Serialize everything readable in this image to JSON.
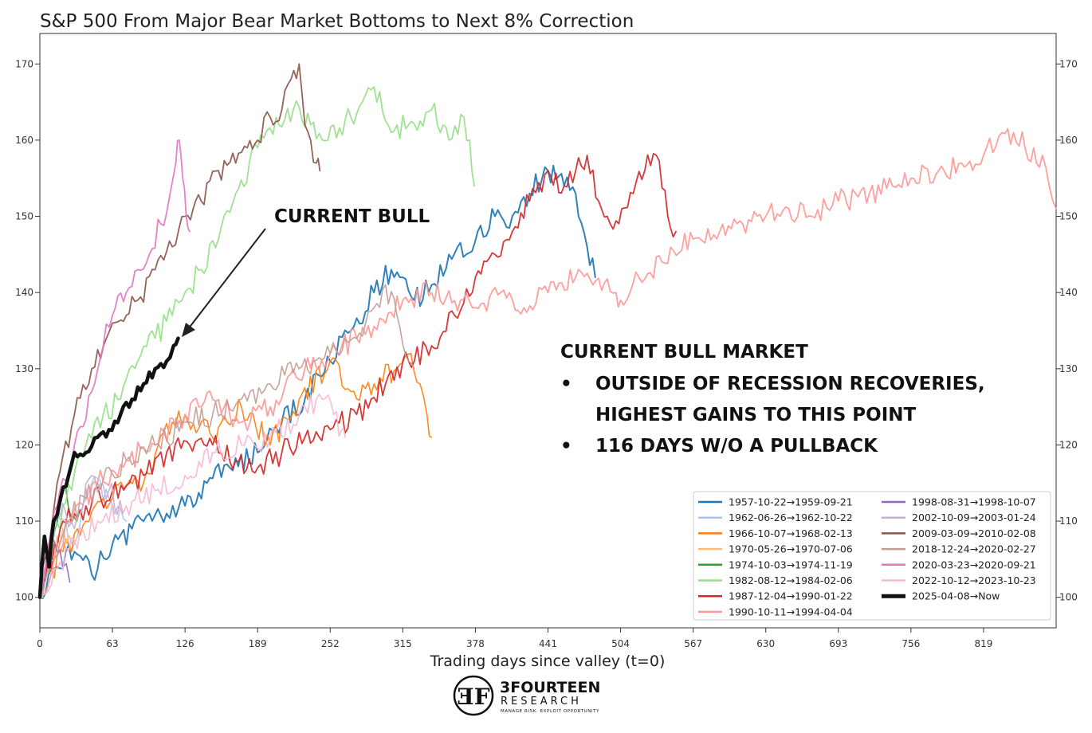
{
  "chart_data": {
    "type": "line",
    "title": "S&P 500 From Major Bear Market Bottoms to Next 8% Correction",
    "xlabel": "Trading days since valley (t=0)",
    "ylabel": "",
    "xlim": [
      0,
      882
    ],
    "ylim": [
      96,
      174
    ],
    "xticks": [
      0,
      63,
      126,
      189,
      252,
      315,
      378,
      441,
      504,
      567,
      630,
      693,
      756,
      819
    ],
    "yticks": [
      100,
      110,
      120,
      130,
      140,
      150,
      160,
      170
    ],
    "grid": false,
    "legend_position": "bottom-right",
    "series": [
      {
        "name": "1957-10-22→1959-09-21",
        "color": "#1f77b4",
        "width": 2,
        "points": [
          [
            0,
            100
          ],
          [
            15,
            104
          ],
          [
            30,
            106
          ],
          [
            45,
            103
          ],
          [
            63,
            107
          ],
          [
            80,
            109
          ],
          [
            95,
            111
          ],
          [
            110,
            111
          ],
          [
            126,
            112
          ],
          [
            145,
            115
          ],
          [
            165,
            117
          ],
          [
            189,
            119
          ],
          [
            210,
            123
          ],
          [
            230,
            126
          ],
          [
            252,
            131
          ],
          [
            270,
            135
          ],
          [
            290,
            140
          ],
          [
            305,
            143
          ],
          [
            315,
            142
          ],
          [
            325,
            139
          ],
          [
            340,
            141
          ],
          [
            355,
            145
          ],
          [
            370,
            145
          ],
          [
            380,
            148
          ],
          [
            395,
            150
          ],
          [
            410,
            150
          ],
          [
            425,
            153
          ],
          [
            441,
            156
          ],
          [
            455,
            154
          ],
          [
            465,
            153
          ],
          [
            475,
            146
          ],
          [
            482,
            142
          ]
        ]
      },
      {
        "name": "1962-06-26→1962-10-22",
        "color": "#aec7e8",
        "width": 1.6,
        "points": [
          [
            0,
            100
          ],
          [
            15,
            111
          ],
          [
            30,
            107
          ],
          [
            45,
            115
          ],
          [
            60,
            113
          ],
          [
            75,
            110
          ]
        ]
      },
      {
        "name": "1966-10-07→1968-02-13",
        "color": "#ff7f0e",
        "width": 1.6,
        "points": [
          [
            0,
            100
          ],
          [
            20,
            106
          ],
          [
            40,
            110
          ],
          [
            63,
            113
          ],
          [
            90,
            115
          ],
          [
            115,
            123
          ],
          [
            126,
            124
          ],
          [
            150,
            121
          ],
          [
            175,
            125
          ],
          [
            200,
            120
          ],
          [
            225,
            126
          ],
          [
            252,
            131
          ],
          [
            270,
            127
          ],
          [
            290,
            128
          ],
          [
            310,
            130
          ],
          [
            322,
            132
          ],
          [
            330,
            128
          ],
          [
            336,
            124
          ],
          [
            340,
            121
          ]
        ]
      },
      {
        "name": "1970-05-26→1970-07-06",
        "color": "#ffbb78",
        "width": 1.6,
        "points": [
          [
            0,
            100
          ],
          [
            10,
            105
          ],
          [
            20,
            109
          ],
          [
            28,
            107
          ]
        ]
      },
      {
        "name": "1974-10-03→1974-11-19",
        "color": "#2ca02c",
        "width": 1.6,
        "points": [
          [
            0,
            100
          ],
          [
            10,
            108
          ],
          [
            20,
            114
          ],
          [
            32,
            110
          ]
        ]
      },
      {
        "name": "1982-08-12→1984-02-06",
        "color": "#98df8a",
        "width": 1.8,
        "points": [
          [
            0,
            100
          ],
          [
            20,
            112
          ],
          [
            40,
            120
          ],
          [
            55,
            124
          ],
          [
            70,
            126
          ],
          [
            85,
            131
          ],
          [
            100,
            134
          ],
          [
            115,
            137
          ],
          [
            126,
            140
          ],
          [
            140,
            143
          ],
          [
            155,
            147
          ],
          [
            170,
            153
          ],
          [
            189,
            159
          ],
          [
            205,
            163
          ],
          [
            220,
            164
          ],
          [
            235,
            162
          ],
          [
            250,
            160
          ],
          [
            270,
            163
          ],
          [
            290,
            167
          ],
          [
            305,
            161
          ],
          [
            320,
            162
          ],
          [
            340,
            164
          ],
          [
            355,
            160
          ],
          [
            368,
            163
          ],
          [
            373,
            160
          ],
          [
            377,
            154
          ]
        ]
      },
      {
        "name": "1987-12-04→1990-01-22",
        "color": "#d62728",
        "width": 1.8,
        "points": [
          [
            0,
            100
          ],
          [
            20,
            110
          ],
          [
            40,
            112
          ],
          [
            63,
            114
          ],
          [
            90,
            116
          ],
          [
            110,
            119
          ],
          [
            130,
            120
          ],
          [
            150,
            120
          ],
          [
            170,
            118
          ],
          [
            189,
            117
          ],
          [
            210,
            119
          ],
          [
            230,
            121
          ],
          [
            252,
            122
          ],
          [
            275,
            124
          ],
          [
            300,
            128
          ],
          [
            320,
            131
          ],
          [
            340,
            133
          ],
          [
            360,
            137
          ],
          [
            378,
            142
          ],
          [
            395,
            145
          ],
          [
            410,
            148
          ],
          [
            425,
            152
          ],
          [
            441,
            156
          ],
          [
            455,
            154
          ],
          [
            465,
            156
          ],
          [
            475,
            158
          ],
          [
            485,
            152
          ],
          [
            495,
            149
          ],
          [
            505,
            151
          ],
          [
            515,
            153
          ],
          [
            525,
            156
          ],
          [
            535,
            158
          ],
          [
            545,
            150
          ],
          [
            552,
            148
          ]
        ]
      },
      {
        "name": "1990-10-11→1994-04-04",
        "color": "#ff9896",
        "width": 1.8,
        "points": [
          [
            0,
            100
          ],
          [
            25,
            110
          ],
          [
            50,
            115
          ],
          [
            75,
            118
          ],
          [
            100,
            120
          ],
          [
            126,
            124
          ],
          [
            150,
            126
          ],
          [
            175,
            123
          ],
          [
            200,
            125
          ],
          [
            230,
            130
          ],
          [
            252,
            132
          ],
          [
            275,
            134
          ],
          [
            300,
            136
          ],
          [
            315,
            139
          ],
          [
            340,
            140
          ],
          [
            365,
            139
          ],
          [
            378,
            138
          ],
          [
            400,
            140
          ],
          [
            420,
            138
          ],
          [
            441,
            140
          ],
          [
            465,
            142
          ],
          [
            480,
            141
          ],
          [
            500,
            140
          ],
          [
            504,
            139
          ],
          [
            520,
            142
          ],
          [
            540,
            144
          ],
          [
            567,
            147
          ],
          [
            590,
            148
          ],
          [
            610,
            149
          ],
          [
            630,
            150
          ],
          [
            650,
            151
          ],
          [
            670,
            150
          ],
          [
            693,
            152
          ],
          [
            720,
            153
          ],
          [
            740,
            154
          ],
          [
            756,
            155
          ],
          [
            780,
            156
          ],
          [
            800,
            157
          ],
          [
            819,
            158
          ],
          [
            835,
            161
          ],
          [
            845,
            161
          ],
          [
            855,
            159
          ],
          [
            865,
            157
          ],
          [
            870,
            158
          ],
          [
            876,
            154
          ],
          [
            882,
            151
          ]
        ]
      },
      {
        "name": "1998-08-31→1998-10-07",
        "color": "#9467bd",
        "width": 1.6,
        "points": [
          [
            0,
            100
          ],
          [
            10,
            108
          ],
          [
            20,
            104
          ],
          [
            26,
            102
          ]
        ]
      },
      {
        "name": "2002-10-09→2003-01-24",
        "color": "#c5b0d5",
        "width": 1.6,
        "points": [
          [
            0,
            100
          ],
          [
            15,
            112
          ],
          [
            30,
            109
          ],
          [
            45,
            116
          ],
          [
            60,
            114
          ],
          [
            72,
            111
          ]
        ]
      },
      {
        "name": "2009-03-09→2010-02-08",
        "color": "#8c564b",
        "width": 1.8,
        "points": [
          [
            0,
            100
          ],
          [
            15,
            115
          ],
          [
            30,
            124
          ],
          [
            45,
            130
          ],
          [
            63,
            136
          ],
          [
            75,
            137
          ],
          [
            85,
            139
          ],
          [
            100,
            143
          ],
          [
            115,
            146
          ],
          [
            126,
            150
          ],
          [
            140,
            152
          ],
          [
            155,
            156
          ],
          [
            170,
            157
          ],
          [
            180,
            159
          ],
          [
            189,
            160
          ],
          [
            200,
            163
          ],
          [
            210,
            164
          ],
          [
            218,
            168
          ],
          [
            225,
            170
          ],
          [
            230,
            162
          ],
          [
            235,
            160
          ],
          [
            240,
            157
          ],
          [
            243,
            156
          ]
        ]
      },
      {
        "name": "2018-12-24→2020-02-27",
        "color": "#c49c94",
        "width": 1.6,
        "points": [
          [
            0,
            100
          ],
          [
            25,
            110
          ],
          [
            50,
            115
          ],
          [
            75,
            118
          ],
          [
            100,
            120
          ],
          [
            126,
            123
          ],
          [
            150,
            124
          ],
          [
            175,
            126
          ],
          [
            200,
            128
          ],
          [
            225,
            130
          ],
          [
            252,
            132
          ],
          [
            275,
            134
          ],
          [
            290,
            138
          ],
          [
            300,
            141
          ],
          [
            310,
            137
          ],
          [
            320,
            131
          ],
          [
            325,
            130
          ]
        ]
      },
      {
        "name": "2020-03-23→2020-09-21",
        "color": "#e377c2",
        "width": 1.8,
        "points": [
          [
            0,
            100
          ],
          [
            15,
            112
          ],
          [
            30,
            120
          ],
          [
            45,
            127
          ],
          [
            55,
            133
          ],
          [
            63,
            137
          ],
          [
            75,
            140
          ],
          [
            85,
            143
          ],
          [
            95,
            145
          ],
          [
            105,
            149
          ],
          [
            113,
            153
          ],
          [
            118,
            157
          ],
          [
            121,
            160
          ],
          [
            124,
            155
          ],
          [
            127,
            150
          ],
          [
            130,
            148
          ]
        ]
      },
      {
        "name": "2022-10-12→2023-10-23",
        "color": "#f7b6d2",
        "width": 1.6,
        "points": [
          [
            0,
            100
          ],
          [
            25,
            106
          ],
          [
            50,
            110
          ],
          [
            75,
            112
          ],
          [
            100,
            114
          ],
          [
            126,
            116
          ],
          [
            150,
            119
          ],
          [
            175,
            120
          ],
          [
            200,
            121
          ],
          [
            225,
            124
          ],
          [
            245,
            126
          ],
          [
            255,
            124
          ],
          [
            262,
            122
          ],
          [
            265,
            121
          ]
        ]
      },
      {
        "name": "2025-04-08→Now",
        "color": "#111111",
        "width": 4.5,
        "points": [
          [
            0,
            100
          ],
          [
            4,
            108
          ],
          [
            8,
            104
          ],
          [
            12,
            110
          ],
          [
            18,
            113
          ],
          [
            25,
            116
          ],
          [
            30,
            119
          ],
          [
            40,
            119
          ],
          [
            50,
            121
          ],
          [
            60,
            122
          ],
          [
            70,
            124
          ],
          [
            80,
            126
          ],
          [
            90,
            128
          ],
          [
            100,
            130
          ],
          [
            110,
            131
          ],
          [
            116,
            133
          ],
          [
            120,
            134
          ]
        ]
      }
    ]
  },
  "annotations": {
    "current_bull_label": "CURRENT BULL",
    "box_heading": "CURRENT BULL MARKET",
    "bullet_1_line_1": "OUTSIDE OF RECESSION RECOVERIES,",
    "bullet_1_line_2": "HIGHEST GAINS TO THIS POINT",
    "bullet_2": "116 DAYS W/O A PULLBACK",
    "bullet_symbol": "•"
  },
  "logo": {
    "name": "3FOURTEEN",
    "subname": "RESEARCH",
    "tagline": "MANAGE RISK. EXPLOIT OPPORTUNITY"
  },
  "colors": {
    "background": "#ffffff",
    "axis": "#333333",
    "current_bull": "#111111"
  }
}
